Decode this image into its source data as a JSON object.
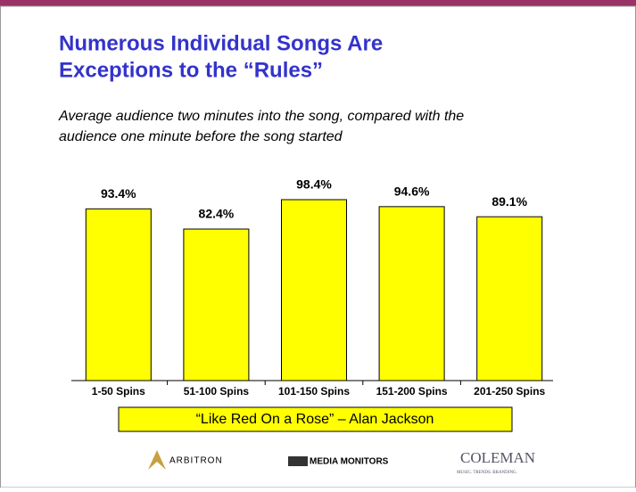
{
  "chart_data": {
    "type": "bar",
    "title": [
      "Numerous Individual Songs Are",
      "Exceptions to the “Rules”"
    ],
    "subtitle": [
      "Average audience two minutes into the song, compared with the",
      "audience one minute before the song started"
    ],
    "categories": [
      "1-50 Spins",
      "51-100 Spins",
      "101-150 Spins",
      "151-200 Spins",
      "201-250 Spins"
    ],
    "series": [
      {
        "name": "“Like Red On a Rose” – Alan Jackson",
        "color": "#ffff00",
        "values": [
          93.4,
          82.4,
          98.4,
          94.6,
          89.1
        ],
        "value_labels": [
          "93.4%",
          "82.4%",
          "98.4%",
          "94.6%",
          "89.1%"
        ]
      }
    ],
    "logos": [
      "ARBITRON",
      "MEDIA MONITORS",
      "COLEMAN",
      "MUSIC. TRENDS. BRANDING."
    ]
  }
}
